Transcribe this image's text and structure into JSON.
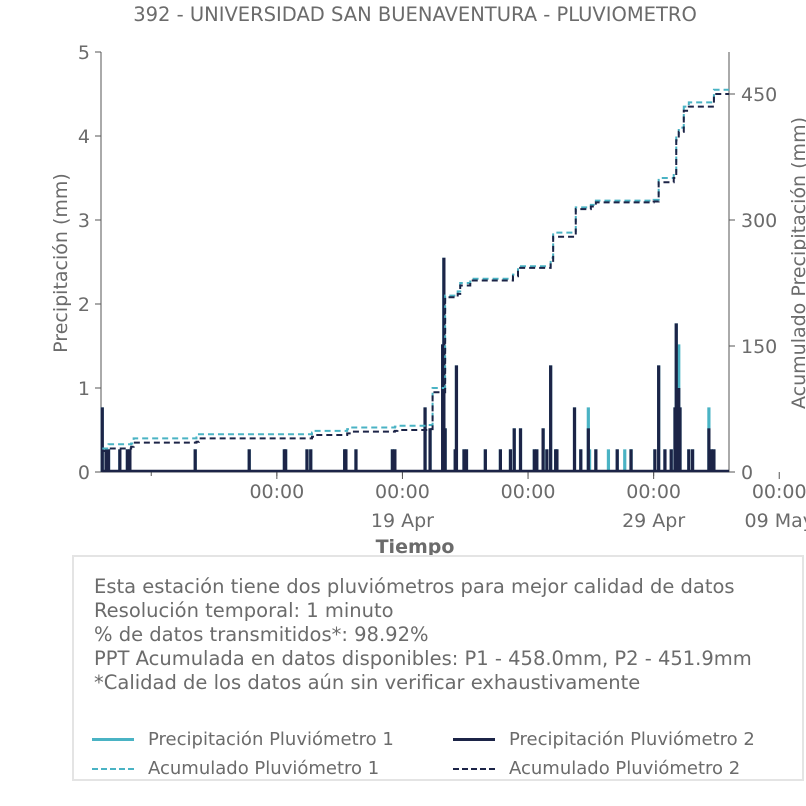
{
  "chart_data": {
    "type": "line",
    "title": "392 - UNIVERSIDAD SAN BUENAVENTURA - PLUVIOMETRO",
    "xlabel": "Tiempo",
    "ylabel_left": "Precipitación (mm)",
    "ylabel_right": "Acumulado Precipitación (mm)",
    "ylim_left": [
      0,
      5
    ],
    "ylim_right": [
      0,
      500
    ],
    "yticks_left": [
      "0",
      "1",
      "2",
      "3",
      "4",
      "5"
    ],
    "yticks_right": [
      "0",
      "150",
      "300",
      "450"
    ],
    "xlim_days": [
      2,
      27
    ],
    "x_reference": "Day numbers counted in April (day 19 = 19 Apr, day 29 = 29 Apr, day 39 = 09 May)",
    "xticks_major": [
      {
        "day": 9,
        "time": "00:00",
        "date": ""
      },
      {
        "day": 14,
        "time": "00:00",
        "date": "19 Apr"
      },
      {
        "day": 19,
        "time": "00:00",
        "date": ""
      },
      {
        "day": 24,
        "time": "00:00",
        "date": "29 Apr"
      },
      {
        "day": 29,
        "time": "00:00",
        "date": "09 May"
      }
    ],
    "date_labels": [
      {
        "text": "19 Apr",
        "day": 14
      },
      {
        "text": "29 Apr",
        "day": 24
      },
      {
        "text": "09 May",
        "day": 29
      }
    ],
    "series": [
      {
        "name": "Precipitación Pluviómetro 1",
        "color": "#4ab3c4",
        "style": "solid",
        "axis": "left",
        "bars": [
          [
            2.05,
            0.77
          ],
          [
            2.2,
            0.27
          ],
          [
            2.3,
            0.27
          ],
          [
            2.75,
            0.27
          ],
          [
            3.05,
            0.27
          ],
          [
            3.15,
            0.27
          ],
          [
            5.75,
            0.27
          ],
          [
            7.9,
            0.27
          ],
          [
            9.3,
            0.27
          ],
          [
            9.35,
            0.27
          ],
          [
            10.2,
            0.27
          ],
          [
            10.35,
            0.27
          ],
          [
            11.7,
            0.27
          ],
          [
            11.75,
            0.27
          ],
          [
            12.15,
            0.27
          ],
          [
            13.6,
            0.27
          ],
          [
            13.7,
            0.27
          ],
          [
            14.9,
            0.77
          ],
          [
            15.1,
            0.52
          ],
          [
            15.6,
            1.52
          ],
          [
            15.65,
            2.55
          ],
          [
            15.7,
            0.52
          ],
          [
            16.1,
            0.27
          ],
          [
            16.15,
            1.27
          ],
          [
            16.45,
            0.27
          ],
          [
            16.55,
            0.27
          ],
          [
            17.3,
            0.27
          ],
          [
            17.9,
            0.27
          ],
          [
            18.3,
            0.27
          ],
          [
            18.45,
            0.52
          ],
          [
            18.7,
            0.52
          ],
          [
            19.25,
            0.27
          ],
          [
            19.35,
            0.27
          ],
          [
            19.6,
            0.52
          ],
          [
            19.75,
            0.27
          ],
          [
            19.9,
            1.27
          ],
          [
            20.1,
            0.27
          ],
          [
            20.15,
            0.27
          ],
          [
            20.85,
            0.77
          ],
          [
            21.1,
            0.27
          ],
          [
            21.4,
            0.77
          ],
          [
            21.45,
            0.27
          ],
          [
            21.7,
            0.27
          ],
          [
            22.2,
            0.27
          ],
          [
            22.55,
            0.27
          ],
          [
            22.85,
            0.27
          ],
          [
            23.1,
            0.27
          ],
          [
            23.1,
            0.27
          ],
          [
            24.05,
            0.27
          ],
          [
            24.2,
            1.27
          ],
          [
            24.45,
            0.27
          ],
          [
            24.7,
            0.27
          ],
          [
            24.85,
            0.77
          ],
          [
            24.9,
            1.77
          ],
          [
            25.0,
            1.52
          ],
          [
            25.05,
            0.77
          ],
          [
            25.4,
            0.27
          ],
          [
            25.55,
            0.27
          ],
          [
            26.2,
            0.77
          ],
          [
            26.3,
            0.27
          ],
          [
            26.4,
            0.27
          ]
        ]
      },
      {
        "name": "Precipitación Pluviómetro 2",
        "color": "#1c2447",
        "style": "solid",
        "axis": "left",
        "bars": [
          [
            2.05,
            0.77
          ],
          [
            2.2,
            0.27
          ],
          [
            2.3,
            0.27
          ],
          [
            2.75,
            0.27
          ],
          [
            3.05,
            0.27
          ],
          [
            3.15,
            0.27
          ],
          [
            5.75,
            0.27
          ],
          [
            7.9,
            0.27
          ],
          [
            9.3,
            0.27
          ],
          [
            9.35,
            0.27
          ],
          [
            10.2,
            0.27
          ],
          [
            10.35,
            0.27
          ],
          [
            11.7,
            0.27
          ],
          [
            11.75,
            0.27
          ],
          [
            12.15,
            0.27
          ],
          [
            13.6,
            0.27
          ],
          [
            13.7,
            0.27
          ],
          [
            14.9,
            0.77
          ],
          [
            15.1,
            0.52
          ],
          [
            15.6,
            1.52
          ],
          [
            15.65,
            2.55
          ],
          [
            15.7,
            0.52
          ],
          [
            16.1,
            0.27
          ],
          [
            16.15,
            1.27
          ],
          [
            16.45,
            0.27
          ],
          [
            16.55,
            0.27
          ],
          [
            17.3,
            0.27
          ],
          [
            17.9,
            0.27
          ],
          [
            18.3,
            0.27
          ],
          [
            18.45,
            0.52
          ],
          [
            18.7,
            0.52
          ],
          [
            19.25,
            0.27
          ],
          [
            19.35,
            0.27
          ],
          [
            19.6,
            0.52
          ],
          [
            19.75,
            0.27
          ],
          [
            19.9,
            1.27
          ],
          [
            20.1,
            0.27
          ],
          [
            20.15,
            0.27
          ],
          [
            20.85,
            0.77
          ],
          [
            21.1,
            0.27
          ],
          [
            21.4,
            0.52
          ],
          [
            21.7,
            0.27
          ],
          [
            22.55,
            0.27
          ],
          [
            23.1,
            0.27
          ],
          [
            24.05,
            0.27
          ],
          [
            24.2,
            1.27
          ],
          [
            24.45,
            0.27
          ],
          [
            24.7,
            0.27
          ],
          [
            24.85,
            0.77
          ],
          [
            24.9,
            1.77
          ],
          [
            25.0,
            1.0
          ],
          [
            25.05,
            0.77
          ],
          [
            25.4,
            0.27
          ],
          [
            25.55,
            0.27
          ],
          [
            26.2,
            0.52
          ],
          [
            26.3,
            0.27
          ],
          [
            26.4,
            0.27
          ]
        ]
      },
      {
        "name": "Acumulado Pluviómetro 1",
        "color": "#4ab3c4",
        "style": "dashed",
        "axis": "right",
        "points": [
          [
            2.05,
            28
          ],
          [
            2.3,
            33
          ],
          [
            3.2,
            34
          ],
          [
            3.3,
            40
          ],
          [
            5.8,
            41
          ],
          [
            5.9,
            45
          ],
          [
            10.4,
            47
          ],
          [
            10.5,
            49
          ],
          [
            11.8,
            51
          ],
          [
            11.9,
            53
          ],
          [
            13.7,
            54
          ],
          [
            13.8,
            55
          ],
          [
            15.0,
            56
          ],
          [
            15.2,
            100
          ],
          [
            15.6,
            100
          ],
          [
            15.7,
            210
          ],
          [
            16.2,
            215
          ],
          [
            16.3,
            225
          ],
          [
            16.7,
            230
          ],
          [
            18.2,
            230
          ],
          [
            18.4,
            235
          ],
          [
            18.6,
            245
          ],
          [
            19.3,
            245
          ],
          [
            19.9,
            255
          ],
          [
            20.0,
            285
          ],
          [
            20.8,
            285
          ],
          [
            20.9,
            315
          ],
          [
            21.5,
            318
          ],
          [
            21.7,
            323
          ],
          [
            24.0,
            324
          ],
          [
            24.2,
            350
          ],
          [
            24.8,
            355
          ],
          [
            24.9,
            400
          ],
          [
            25.0,
            410
          ],
          [
            25.2,
            435
          ],
          [
            25.4,
            440
          ],
          [
            26.2,
            440
          ],
          [
            26.4,
            455
          ],
          [
            27.0,
            455
          ]
        ]
      },
      {
        "name": "Acumulado Pluviómetro 2",
        "color": "#1c2447",
        "style": "dashed",
        "axis": "right",
        "points": [
          [
            2.05,
            25
          ],
          [
            2.3,
            28
          ],
          [
            3.2,
            30
          ],
          [
            3.3,
            35
          ],
          [
            5.8,
            36
          ],
          [
            5.9,
            40
          ],
          [
            10.4,
            42
          ],
          [
            10.5,
            44
          ],
          [
            11.8,
            46
          ],
          [
            11.9,
            48
          ],
          [
            13.7,
            49
          ],
          [
            13.8,
            50
          ],
          [
            15.0,
            51
          ],
          [
            15.2,
            95
          ],
          [
            15.6,
            95
          ],
          [
            15.7,
            208
          ],
          [
            16.2,
            212
          ],
          [
            16.3,
            222
          ],
          [
            16.7,
            228
          ],
          [
            18.2,
            228
          ],
          [
            18.4,
            233
          ],
          [
            18.6,
            243
          ],
          [
            19.3,
            243
          ],
          [
            19.9,
            250
          ],
          [
            20.0,
            280
          ],
          [
            20.8,
            280
          ],
          [
            20.9,
            313
          ],
          [
            21.5,
            316
          ],
          [
            21.7,
            321
          ],
          [
            24.0,
            322
          ],
          [
            24.2,
            345
          ],
          [
            24.8,
            350
          ],
          [
            24.9,
            395
          ],
          [
            25.0,
            405
          ],
          [
            25.2,
            430
          ],
          [
            25.4,
            435
          ],
          [
            26.2,
            435
          ],
          [
            26.4,
            450
          ],
          [
            27.0,
            450
          ]
        ]
      }
    ]
  },
  "info": {
    "lines": [
      "Esta estación tiene dos pluviómetros para mejor calidad de datos",
      "Resolución temporal: 1 minuto",
      "% de datos transmitidos*: 98.92%",
      "PPT Acumulada en datos disponibles: P1 - 458.0mm, P2 - 451.9mm",
      "*Calidad de los datos aún sin verificar exhaustivamente"
    ]
  },
  "legend": {
    "items": [
      {
        "label": "Precipitación Pluviómetro 1",
        "color": "#4ab3c4",
        "style": "solid"
      },
      {
        "label": "Precipitación Pluviómetro 2",
        "color": "#1c2447",
        "style": "solid"
      },
      {
        "label": "Acumulado Pluviómetro 1",
        "color": "#4ab3c4",
        "style": "dashed"
      },
      {
        "label": "Acumulado Pluviómetro 2",
        "color": "#1c2447",
        "style": "dashed"
      }
    ]
  }
}
